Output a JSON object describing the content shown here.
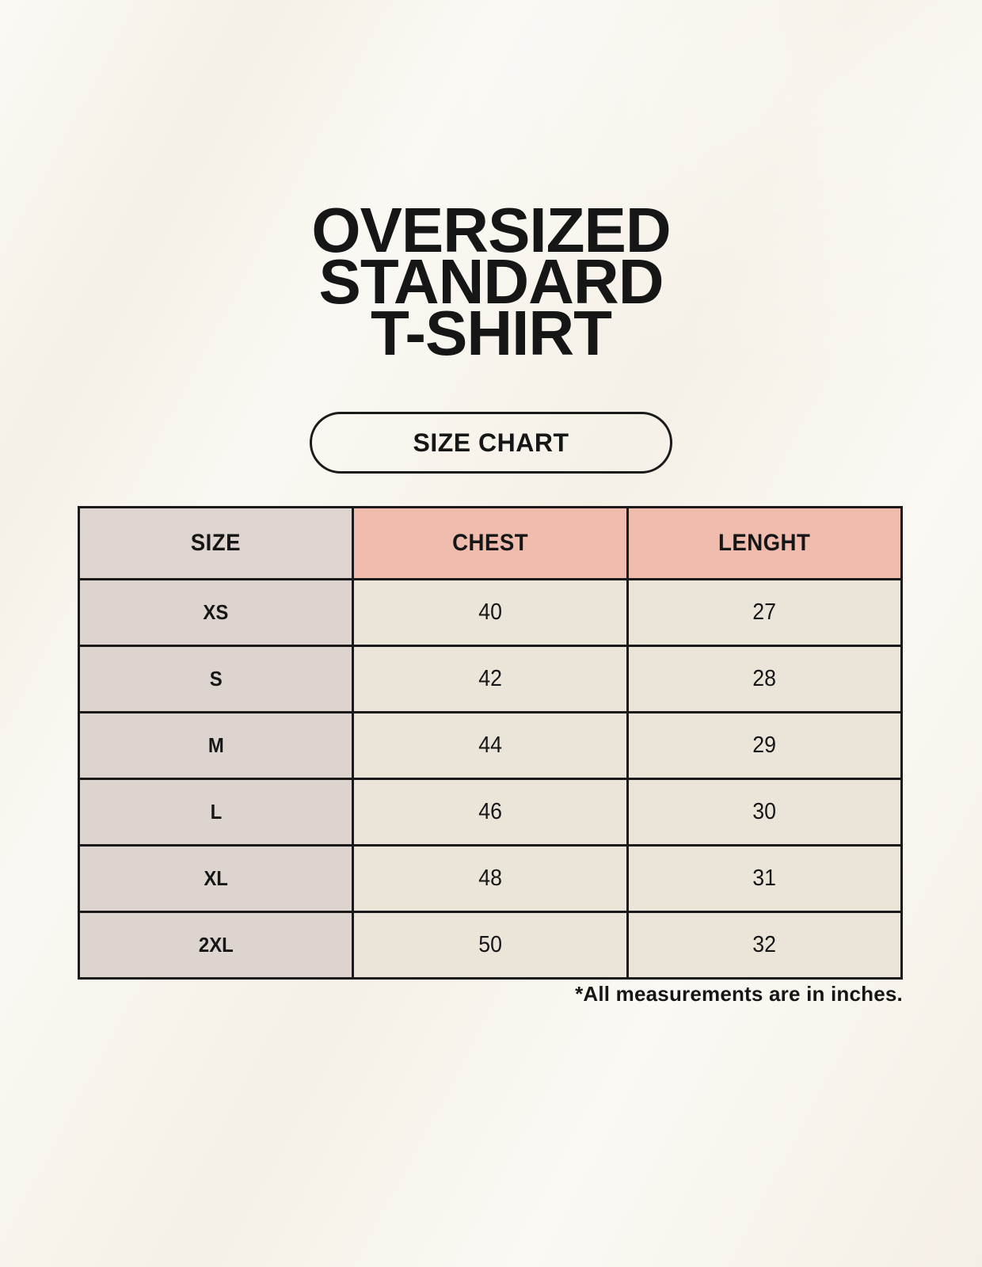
{
  "title": {
    "lines": [
      "OVERSIZED",
      "STANDARD",
      "T-SHIRT"
    ]
  },
  "badge": {
    "label": "SIZE CHART"
  },
  "chart_data": {
    "type": "table",
    "title": "OVERSIZED STANDARD T-SHIRT",
    "columns": [
      "SIZE",
      "CHEST",
      "LENGHT"
    ],
    "rows": [
      [
        "XS",
        40,
        27
      ],
      [
        "S",
        42,
        28
      ],
      [
        "M",
        44,
        29
      ],
      [
        "L",
        46,
        30
      ],
      [
        "XL",
        48,
        31
      ],
      [
        "2XL",
        50,
        32
      ]
    ],
    "note": "*All measurements are in inches.",
    "units": "inches"
  },
  "colors": {
    "background": "#f7f3ea",
    "header_size_bg": "#ded5d1",
    "header_accent_bg": "#efbcae",
    "size_col_bg": "#ddd4d0",
    "cell_bg": "#ebe4d9",
    "border": "#1a1a1a",
    "text": "#161616"
  }
}
